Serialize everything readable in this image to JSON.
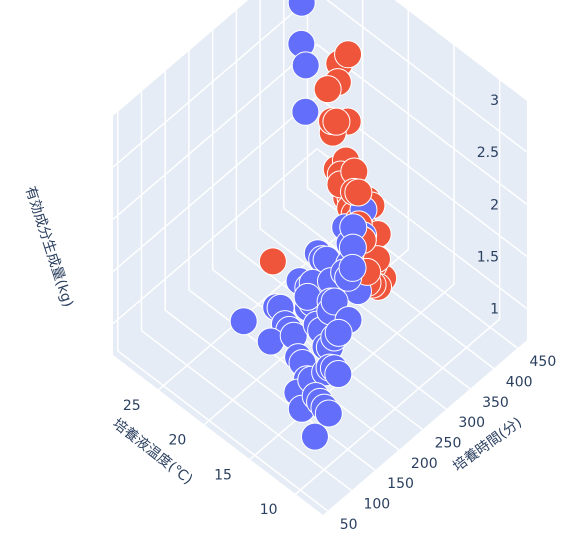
{
  "chart_data": {
    "type": "scatter3d",
    "title": "",
    "x_axis": {
      "label": "培養液温度(℃)",
      "ticks": [
        "10",
        "15",
        "20",
        "25"
      ],
      "range": [
        7,
        30
      ]
    },
    "y_axis": {
      "label": "培養時間(分)",
      "ticks": [
        "50",
        "100",
        "150",
        "200",
        "250",
        "300",
        "350",
        "400",
        "450"
      ],
      "range": [
        40,
        470
      ]
    },
    "z_axis": {
      "label": "有効成分生成量(kg)",
      "ticks": [
        "1",
        "1.5",
        "2",
        "2.5",
        "3"
      ],
      "range": [
        0.7,
        3.0
      ]
    },
    "series": [
      {
        "color": "#636efa",
        "points": [
          [
            28,
            410,
            3.0
          ],
          [
            27,
            380,
            2.95
          ],
          [
            26,
            360,
            2.7
          ],
          [
            25,
            350,
            2.6
          ],
          [
            24,
            330,
            2.3
          ],
          [
            12,
            200,
            2.5
          ],
          [
            11,
            180,
            2.45
          ],
          [
            12,
            220,
            2.3
          ],
          [
            13,
            240,
            2.2
          ],
          [
            14,
            260,
            2.3
          ],
          [
            10,
            160,
            2.4
          ],
          [
            11,
            170,
            2.2
          ],
          [
            13,
            200,
            2.0
          ],
          [
            12,
            210,
            1.85
          ],
          [
            14,
            230,
            1.9
          ],
          [
            15,
            250,
            1.95
          ],
          [
            16,
            260,
            2.0
          ],
          [
            13,
            180,
            1.8
          ],
          [
            11,
            150,
            1.75
          ],
          [
            12,
            160,
            1.6
          ],
          [
            14,
            190,
            1.6
          ],
          [
            15,
            210,
            1.55
          ],
          [
            16,
            230,
            1.6
          ],
          [
            17,
            240,
            1.7
          ],
          [
            18,
            250,
            1.6
          ],
          [
            10,
            130,
            1.5
          ],
          [
            11,
            140,
            1.45
          ],
          [
            12,
            150,
            1.35
          ],
          [
            13,
            170,
            1.4
          ],
          [
            14,
            180,
            1.3
          ],
          [
            15,
            190,
            1.35
          ],
          [
            16,
            200,
            1.3
          ],
          [
            17,
            210,
            1.4
          ],
          [
            18,
            220,
            1.25
          ],
          [
            19,
            240,
            1.3
          ],
          [
            10,
            110,
            1.2
          ],
          [
            11,
            120,
            1.15
          ],
          [
            12,
            130,
            1.1
          ],
          [
            13,
            140,
            1.05
          ],
          [
            14,
            150,
            1.1
          ],
          [
            15,
            160,
            1.0
          ],
          [
            16,
            170,
            1.05
          ],
          [
            17,
            180,
            1.0
          ],
          [
            18,
            190,
            1.1
          ],
          [
            19,
            200,
            1.05
          ],
          [
            20,
            210,
            1.0
          ],
          [
            21,
            220,
            1.05
          ],
          [
            20,
            180,
            0.95
          ],
          [
            22,
            230,
            0.95
          ],
          [
            24,
            200,
            0.8
          ],
          [
            13,
            160,
            1.2
          ],
          [
            16,
            220,
            1.2
          ],
          [
            18,
            230,
            1.45
          ],
          [
            12,
            190,
            1.65
          ],
          [
            17,
            200,
            1.5
          ],
          [
            19,
            260,
            1.55
          ],
          [
            15,
            140,
            0.95
          ],
          [
            14,
            130,
            0.9
          ],
          [
            21,
            260,
            1.15
          ],
          [
            11,
            100,
            0.95
          ]
        ]
      },
      {
        "color": "#ef553b",
        "points": [
          [
            20,
            300,
            2.9
          ],
          [
            18,
            280,
            2.8
          ],
          [
            19,
            290,
            2.7
          ],
          [
            15,
            260,
            2.6
          ],
          [
            14,
            240,
            2.55
          ],
          [
            13,
            230,
            2.65
          ],
          [
            16,
            250,
            2.45
          ],
          [
            17,
            270,
            2.4
          ],
          [
            18,
            300,
            2.35
          ],
          [
            12,
            220,
            2.3
          ],
          [
            21,
            330,
            2.3
          ],
          [
            19,
            300,
            2.2
          ],
          [
            24,
            420,
            2.5
          ],
          [
            26,
            440,
            2.2
          ],
          [
            23,
            400,
            2.0
          ],
          [
            14,
            250,
            2.2
          ],
          [
            15,
            270,
            2.1
          ],
          [
            16,
            280,
            2.05
          ],
          [
            17,
            290,
            2.0
          ],
          [
            18,
            310,
            1.95
          ],
          [
            13,
            240,
            1.9
          ],
          [
            12,
            230,
            1.85
          ],
          [
            19,
            320,
            1.85
          ],
          [
            20,
            340,
            1.8
          ],
          [
            21,
            350,
            1.7
          ],
          [
            22,
            380,
            1.6
          ],
          [
            15,
            280,
            1.75
          ],
          [
            16,
            300,
            1.7
          ],
          [
            17,
            310,
            1.6
          ],
          [
            18,
            330,
            1.55
          ],
          [
            14,
            270,
            1.55
          ],
          [
            19,
            340,
            1.5
          ],
          [
            20,
            360,
            1.45
          ],
          [
            21,
            370,
            1.4
          ],
          [
            22,
            390,
            1.35
          ],
          [
            16,
            320,
            1.4
          ],
          [
            17,
            330,
            1.35
          ],
          [
            18,
            350,
            1.3
          ],
          [
            19,
            360,
            1.25
          ],
          [
            20,
            380,
            1.2
          ],
          [
            23,
            420,
            1.2
          ],
          [
            24,
            430,
            1.15
          ],
          [
            25,
            440,
            1.1
          ],
          [
            21,
            400,
            1.1
          ],
          [
            22,
            410,
            1.05
          ],
          [
            20,
            390,
            1.05
          ],
          [
            18,
            360,
            1.1
          ],
          [
            17,
            350,
            1.15
          ],
          [
            16,
            340,
            1.2
          ],
          [
            15,
            310,
            1.3
          ],
          [
            23,
            450,
            1.0
          ],
          [
            24,
            460,
            0.95
          ],
          [
            25,
            450,
            0.9
          ],
          [
            19,
            380,
            1.0
          ],
          [
            26,
            300,
            0.85
          ],
          [
            13,
            260,
            1.65
          ],
          [
            12,
            250,
            2.0
          ],
          [
            14,
            290,
            1.95
          ],
          [
            22,
            360,
            2.6
          ],
          [
            11,
            210,
            2.1
          ]
        ]
      }
    ]
  }
}
